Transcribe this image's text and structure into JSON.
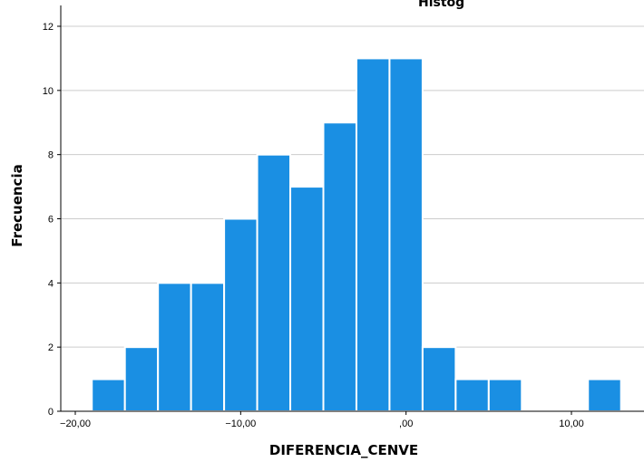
{
  "chart_data": {
    "type": "bar",
    "title": "",
    "title_fragment": "Histog",
    "xlabel": "DIFERENCIA_CENVE",
    "ylabel": "Frecuencia",
    "bin_edges": [
      -19,
      -17,
      -15,
      -13,
      -11,
      -9,
      -7,
      -5,
      -3,
      -1,
      1,
      3,
      5,
      7,
      9,
      11,
      13
    ],
    "values": [
      1,
      2,
      4,
      4,
      6,
      8,
      7,
      9,
      11,
      11,
      2,
      1,
      1,
      0,
      0,
      1
    ],
    "xlim": [
      -20,
      13.5
    ],
    "ylim": [
      0,
      12.6
    ],
    "x_ticks": [
      -20,
      -10,
      0,
      10
    ],
    "x_tick_labels": [
      "−20,00",
      "−10,00",
      ",00",
      "10,00"
    ],
    "y_ticks": [
      0,
      2,
      4,
      6,
      8,
      10,
      12
    ],
    "y_tick_labels": [
      "0",
      "2",
      "4",
      "6",
      "8",
      "10",
      "12"
    ],
    "grid": true,
    "bar_color": "#1a8fe3",
    "grid_color": "#cccccc"
  }
}
